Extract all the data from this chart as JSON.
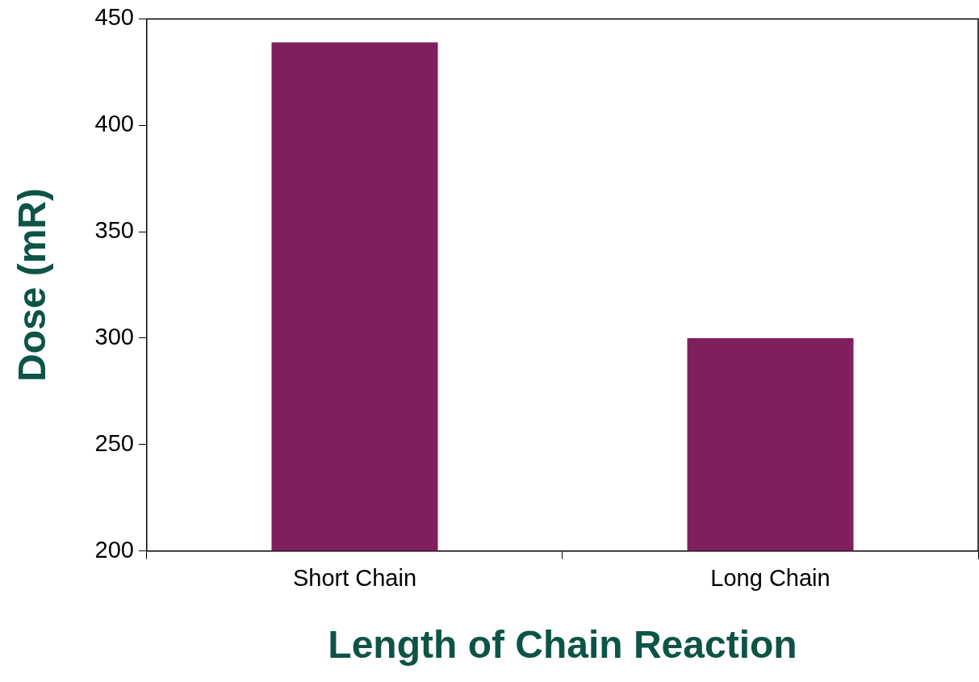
{
  "chart_data": {
    "type": "bar",
    "xlabel": "Length of Chain Reaction",
    "ylabel": "Dose (mR)",
    "categories": [
      "Short Chain",
      "Long Chain"
    ],
    "values": [
      439,
      300
    ],
    "color": "#7f1f5e",
    "ylim": [
      200,
      450
    ],
    "yticks": [
      200,
      250,
      300,
      350,
      400,
      450
    ],
    "grid": false,
    "legend": false
  }
}
